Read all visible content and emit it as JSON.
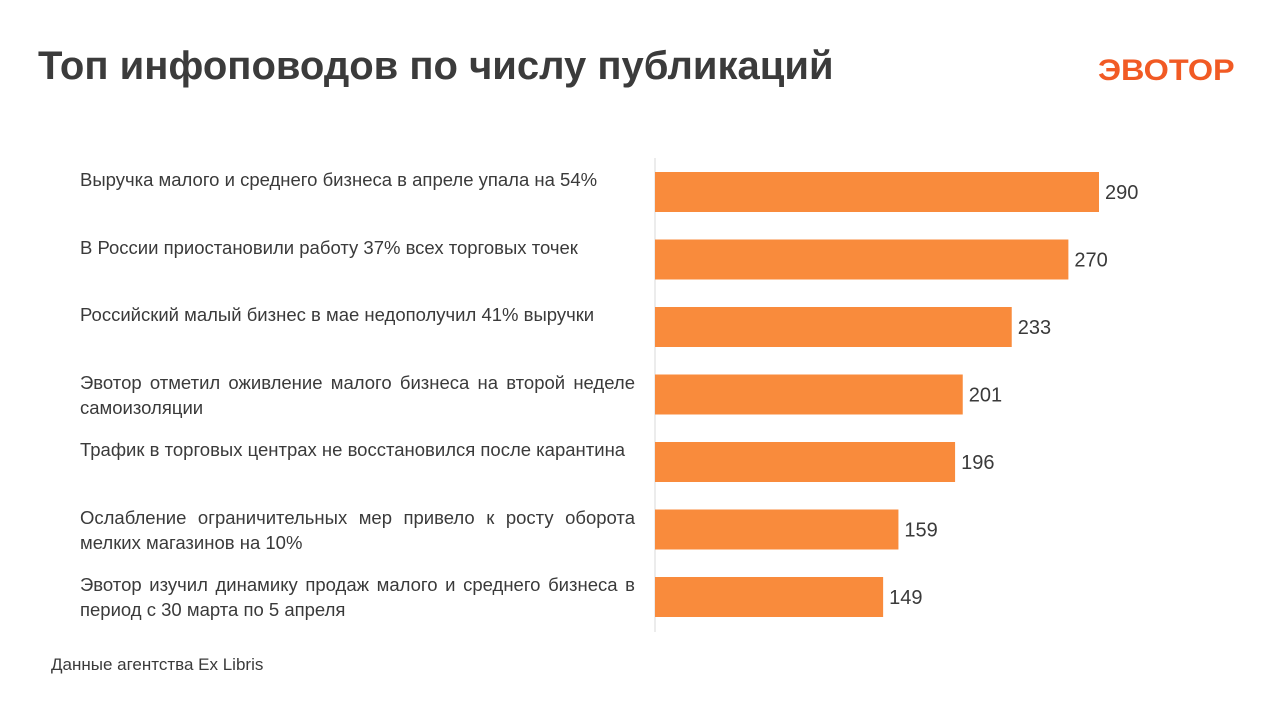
{
  "title": "Топ инфоповодов по числу публикаций",
  "logo": {
    "text": "ЭВОТОР",
    "color": "#f15a24"
  },
  "source": "Данные агентства Ex Libris",
  "colors": {
    "bar": "#f98b3c",
    "axis": "#d9d9d9"
  },
  "chart_data": {
    "type": "bar",
    "orientation": "horizontal",
    "categories": [
      "Выручка малого и среднего бизнеса в апреле упала на 54%",
      "В России приостановили работу 37% всех торговых точек",
      "Российский малый бизнес в мае недополучил 41% выручки",
      "Эвотор отметил оживление малого бизнеса на второй неделе самоизоляции",
      "Трафик в торговых центрах не восстановился после карантина",
      "Ослабление ограничительных мер привело к росту оборота мелких магазинов на 10%",
      "Эвотор изучил динамику продаж малого и среднего бизнеса в период с 30 марта по 5 апреля"
    ],
    "values": [
      290,
      270,
      233,
      201,
      196,
      159,
      149
    ],
    "data_labels": [
      "290",
      "270",
      "233",
      "201",
      "196",
      "159",
      "149"
    ],
    "xlim": [
      0,
      300
    ],
    "grid": false,
    "legend": "none"
  }
}
